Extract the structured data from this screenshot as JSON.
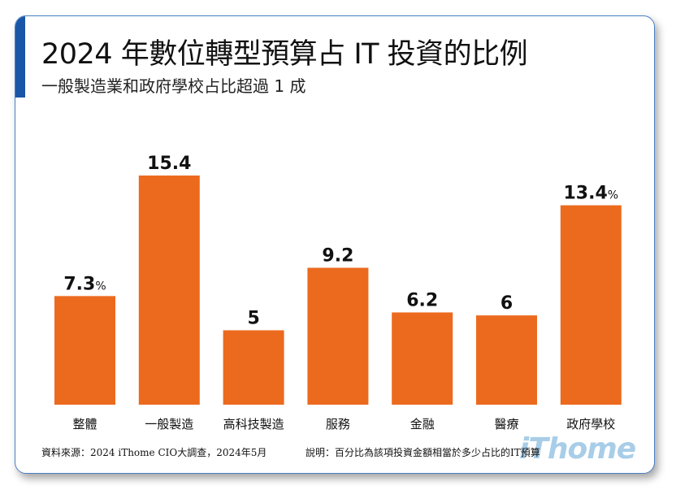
{
  "title": "2024 年數位轉型預算占 IT 投資的比例",
  "subtitle": "一般製造業和政府學校占比超過 1 成",
  "colors": {
    "bar": "#ec6a1e",
    "accent": "#1a56a8",
    "logo": "#a8cde8"
  },
  "chart_data": {
    "type": "bar",
    "categories": [
      "整體",
      "一般製造",
      "高科技製造",
      "服務",
      "金融",
      "醫療",
      "政府學校"
    ],
    "values": [
      7.3,
      15.4,
      5,
      9.2,
      6.2,
      6,
      13.4
    ],
    "data_labels": [
      "7.3",
      "15.4",
      "5",
      "9.2",
      "6.2",
      "6",
      "13.4"
    ],
    "unit_suffix": "%",
    "unit_shown_on": [
      "整體",
      "政府學校"
    ],
    "ylim": [
      0,
      16
    ],
    "grid": false,
    "title": "2024 年數位轉型預算占 IT 投資的比例",
    "subtitle": "一般製造業和政府學校占比超過 1 成",
    "xlabel": "",
    "ylabel": ""
  },
  "footer": {
    "source": "資料來源：2024 iThome CIO大調查，2024年5月",
    "note": "說明：百分比為該項投資金額相當於多少占比的IT預算",
    "logo": "iThome"
  }
}
